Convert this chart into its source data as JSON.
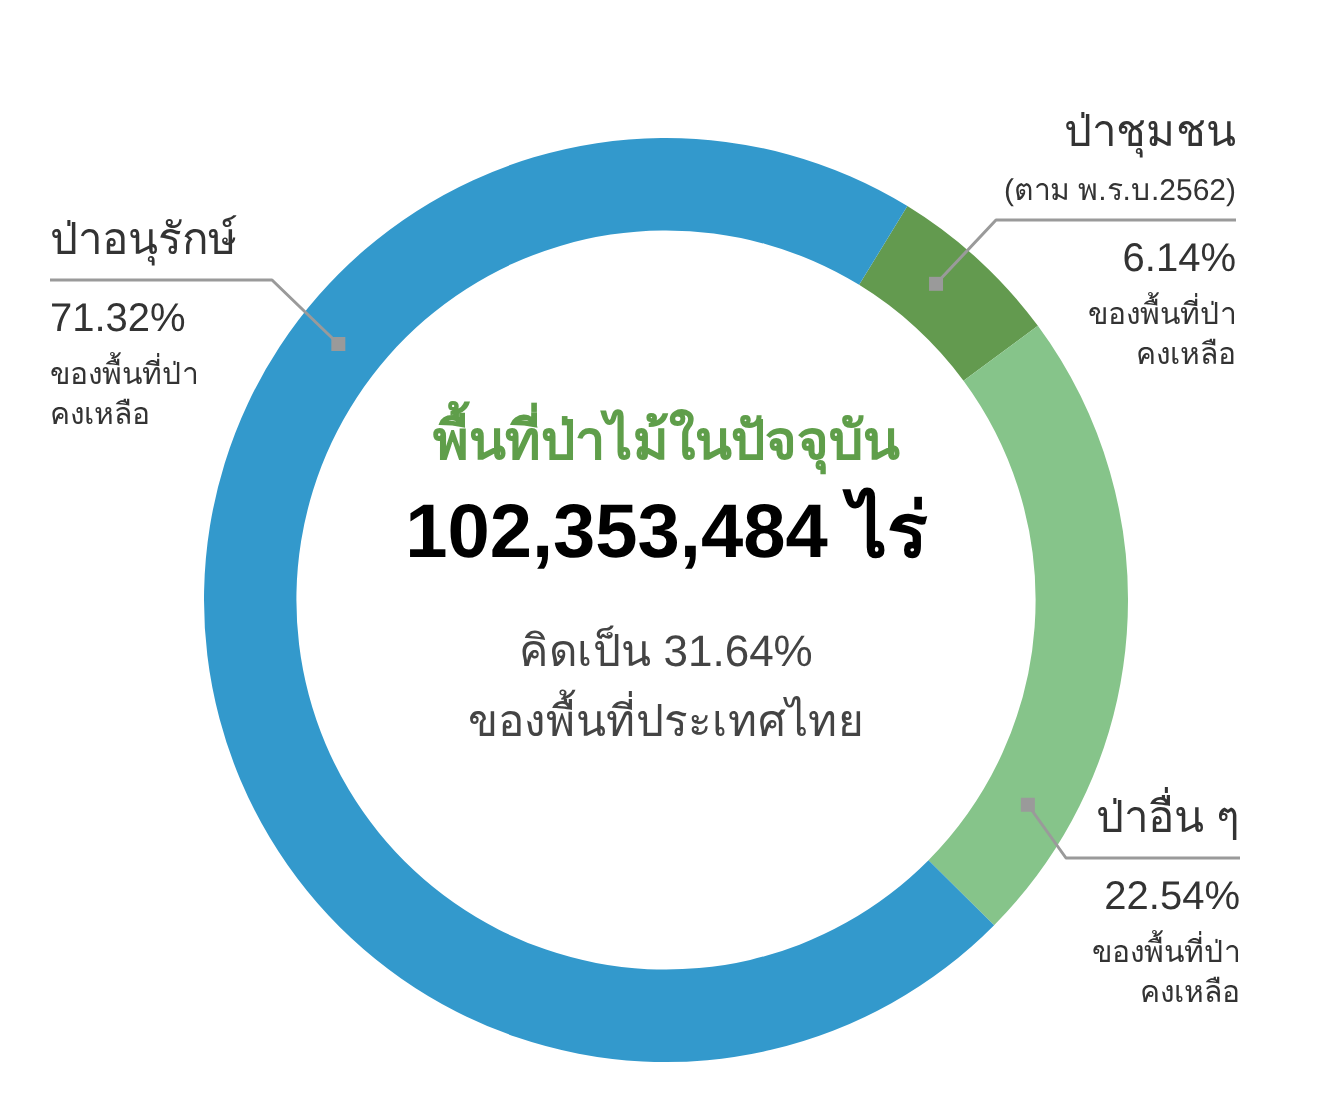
{
  "chart_data": {
    "type": "donut",
    "title": "พื้นที่ป่าไม้ในปัจจุบัน",
    "subtitle": "102,353,484 ไร่",
    "categories": [
      "ป่าชุมชน",
      "ป่าอื่น ๆ",
      "ป่าอนุรักษ์"
    ],
    "values": [
      6.14,
      22.54,
      71.32
    ],
    "colors": [
      "#639a4f",
      "#86c48a",
      "#3399cc"
    ],
    "value_labels": [
      "6.14%",
      "22.54%",
      "71.32%"
    ],
    "annotations": [
      "คิดเป็น 31.64%",
      "ของพื้นที่ประเทศไทย",
      {
        "text": "(ตาม พ.ร.บ.2562)",
        "x": "ป่าชุมชน"
      },
      {
        "text": "ของพื้นที่ป่า\nคงเหลือ",
        "x": "ป่าชุมชน"
      },
      {
        "text": "ของพื้นที่ป่า\nคงเหลือ",
        "x": "ป่าอื่น ๆ"
      },
      {
        "text": "ของพื้นที่ป่า\nคงเหลือ",
        "x": "ป่าอนุรักษ์"
      }
    ]
  }
}
